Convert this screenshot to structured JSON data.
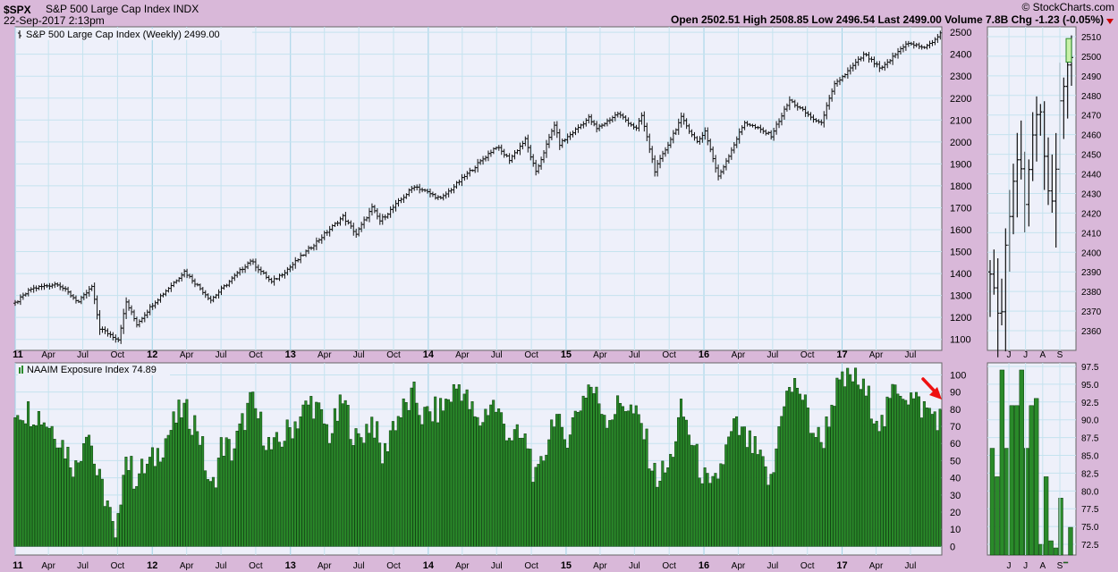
{
  "header": {
    "symbol": "$SPX",
    "name": "S&P 500 Large Cap Index INDX",
    "date": "22-Sep-2017 2:13pm",
    "brand": "© StockCharts.com",
    "quote": "Open 2502.51  High 2508.85  Low 2496.54  Last 2499.00  Volume 7.8B  Chg -1.23 (-0.05%)"
  },
  "chart_data": [
    {
      "type": "ohlc",
      "title": "S&P 500 Large Cap Index (Weekly) 2499.00",
      "ylim": [
        1050,
        2525
      ],
      "yticks": [
        1100,
        1200,
        1300,
        1400,
        1500,
        1600,
        1700,
        1800,
        1900,
        2000,
        2100,
        2200,
        2300,
        2400,
        2500
      ],
      "x_labels": [
        "11",
        "Apr",
        "Jul",
        "Oct",
        "12",
        "Apr",
        "Jul",
        "Oct",
        "13",
        "Apr",
        "Jul",
        "Oct",
        "14",
        "Apr",
        "Jul",
        "Oct",
        "15",
        "Apr",
        "Jul",
        "Oct",
        "16",
        "Apr",
        "Jul",
        "Oct",
        "17",
        "Apr",
        "Jul"
      ],
      "anchors": [
        [
          "2011-01-03",
          1265
        ],
        [
          "2011-02-14",
          1330
        ],
        [
          "2011-04-25",
          1355
        ],
        [
          "2011-06-20",
          1270
        ],
        [
          "2011-07-25",
          1340
        ],
        [
          "2011-08-15",
          1150
        ],
        [
          "2011-10-03",
          1100
        ],
        [
          "2011-10-24",
          1270
        ],
        [
          "2011-11-21",
          1170
        ],
        [
          "2012-01-02",
          1260
        ],
        [
          "2012-03-26",
          1410
        ],
        [
          "2012-06-04",
          1280
        ],
        [
          "2012-09-17",
          1460
        ],
        [
          "2012-11-12",
          1360
        ],
        [
          "2012-12-31",
          1430
        ],
        [
          "2013-05-20",
          1660
        ],
        [
          "2013-06-24",
          1580
        ],
        [
          "2013-08-05",
          1700
        ],
        [
          "2013-08-26",
          1640
        ],
        [
          "2013-11-25",
          1800
        ],
        [
          "2014-02-03",
          1740
        ],
        [
          "2014-06-30",
          1980
        ],
        [
          "2014-08-04",
          1920
        ],
        [
          "2014-09-15",
          2010
        ],
        [
          "2014-10-13",
          1860
        ],
        [
          "2014-12-01",
          2080
        ],
        [
          "2014-12-15",
          1990
        ],
        [
          "2015-03-02",
          2110
        ],
        [
          "2015-03-23",
          2060
        ],
        [
          "2015-05-18",
          2130
        ],
        [
          "2015-07-06",
          2060
        ],
        [
          "2015-07-20",
          2120
        ],
        [
          "2015-08-24",
          1870
        ],
        [
          "2015-11-02",
          2110
        ],
        [
          "2015-12-14",
          2000
        ],
        [
          "2016-01-04",
          2050
        ],
        [
          "2016-02-08",
          1840
        ],
        [
          "2016-04-18",
          2090
        ],
        [
          "2016-06-27",
          2030
        ],
        [
          "2016-08-15",
          2190
        ],
        [
          "2016-11-04",
          2080
        ],
        [
          "2016-12-12",
          2260
        ],
        [
          "2017-03-01",
          2400
        ],
        [
          "2017-04-14",
          2330
        ],
        [
          "2017-06-19",
          2450
        ],
        [
          "2017-08-11",
          2430
        ],
        [
          "2017-09-22",
          2499
        ]
      ],
      "daily_anchors": [
        [
          "2017-05-01",
          2390
        ],
        [
          "2017-05-17",
          2360
        ],
        [
          "2017-05-24",
          2400
        ],
        [
          "2017-06-09",
          2435
        ],
        [
          "2017-06-19",
          2455
        ],
        [
          "2017-06-29",
          2420
        ],
        [
          "2017-07-14",
          2460
        ],
        [
          "2017-07-27",
          2475
        ],
        [
          "2017-08-11",
          2430
        ],
        [
          "2017-08-21",
          2425
        ],
        [
          "2017-09-01",
          2475
        ],
        [
          "2017-09-11",
          2490
        ],
        [
          "2017-09-22",
          2499
        ]
      ],
      "daily_ylim": [
        2350,
        2515
      ],
      "daily_yticks": [
        2360,
        2370,
        2380,
        2390,
        2400,
        2410,
        2420,
        2430,
        2440,
        2450,
        2460,
        2470,
        2480,
        2490,
        2500,
        2510
      ],
      "daily_x_labels": [
        "J",
        "J",
        "A",
        "S"
      ]
    },
    {
      "type": "bar",
      "title": "NAAIM Exposure Index 74.89",
      "ylim": [
        -5,
        107
      ],
      "yticks": [
        0,
        10,
        20,
        30,
        40,
        50,
        60,
        70,
        80,
        90,
        100
      ],
      "series_colors": {
        "positive": "#2a8a2a",
        "negative": "#cc2222"
      },
      "anchors": [
        [
          "2011-01-05",
          80
        ],
        [
          "2011-03-02",
          78
        ],
        [
          "2011-04-20",
          68
        ],
        [
          "2011-06-15",
          45
        ],
        [
          "2011-07-13",
          73
        ],
        [
          "2011-08-10",
          40
        ],
        [
          "2011-09-07",
          25
        ],
        [
          "2011-09-28",
          -2
        ],
        [
          "2011-10-19",
          55
        ],
        [
          "2011-11-16",
          40
        ],
        [
          "2012-01-04",
          50
        ],
        [
          "2012-03-21",
          80
        ],
        [
          "2012-05-02",
          70
        ],
        [
          "2012-06-06",
          30
        ],
        [
          "2012-07-04",
          60
        ],
        [
          "2012-08-01",
          55
        ],
        [
          "2012-09-19",
          85
        ],
        [
          "2012-11-14",
          55
        ],
        [
          "2012-12-19",
          65
        ],
        [
          "2013-02-27",
          85
        ],
        [
          "2013-04-17",
          65
        ],
        [
          "2013-05-22",
          85
        ],
        [
          "2013-06-26",
          60
        ],
        [
          "2013-08-07",
          75
        ],
        [
          "2013-09-04",
          50
        ],
        [
          "2013-09-25",
          70
        ],
        [
          "2013-11-27",
          88
        ],
        [
          "2013-12-18",
          75
        ],
        [
          "2014-02-05",
          80
        ],
        [
          "2014-03-26",
          95
        ],
        [
          "2014-05-14",
          70
        ],
        [
          "2014-06-18",
          85
        ],
        [
          "2014-08-06",
          65
        ],
        [
          "2014-09-24",
          60
        ],
        [
          "2014-10-15",
          35
        ],
        [
          "2014-12-03",
          80
        ],
        [
          "2014-12-24",
          60
        ],
        [
          "2015-03-04",
          95
        ],
        [
          "2015-04-22",
          75
        ],
        [
          "2015-06-03",
          85
        ],
        [
          "2015-07-22",
          70
        ],
        [
          "2015-08-26",
          40
        ],
        [
          "2015-09-30",
          45
        ],
        [
          "2015-11-04",
          80
        ],
        [
          "2015-12-16",
          50
        ],
        [
          "2016-01-20",
          30
        ],
        [
          "2016-03-23",
          70
        ],
        [
          "2016-05-18",
          55
        ],
        [
          "2016-06-29",
          35
        ],
        [
          "2016-07-27",
          85
        ],
        [
          "2016-09-07",
          95
        ],
        [
          "2016-10-12",
          70
        ],
        [
          "2016-11-09",
          60
        ],
        [
          "2016-12-14",
          90
        ],
        [
          "2017-02-01",
          100
        ],
        [
          "2017-03-15",
          85
        ],
        [
          "2017-04-19",
          70
        ],
        [
          "2017-05-24",
          95
        ],
        [
          "2017-07-12",
          85
        ],
        [
          "2017-08-09",
          80
        ],
        [
          "2017-09-20",
          75
        ]
      ],
      "recent": [
        86,
        82,
        97,
        86,
        92,
        92,
        97,
        86,
        92,
        93,
        72.5,
        82,
        73,
        72,
        79,
        70,
        74.89
      ],
      "daily_ylim": [
        71,
        98
      ],
      "daily_yticks": [
        72.5,
        75.0,
        77.5,
        80.0,
        82.5,
        85.0,
        87.5,
        90.0,
        92.5,
        95.0,
        97.5
      ],
      "daily_x_labels": [
        "J",
        "J",
        "A",
        "S"
      ]
    }
  ]
}
